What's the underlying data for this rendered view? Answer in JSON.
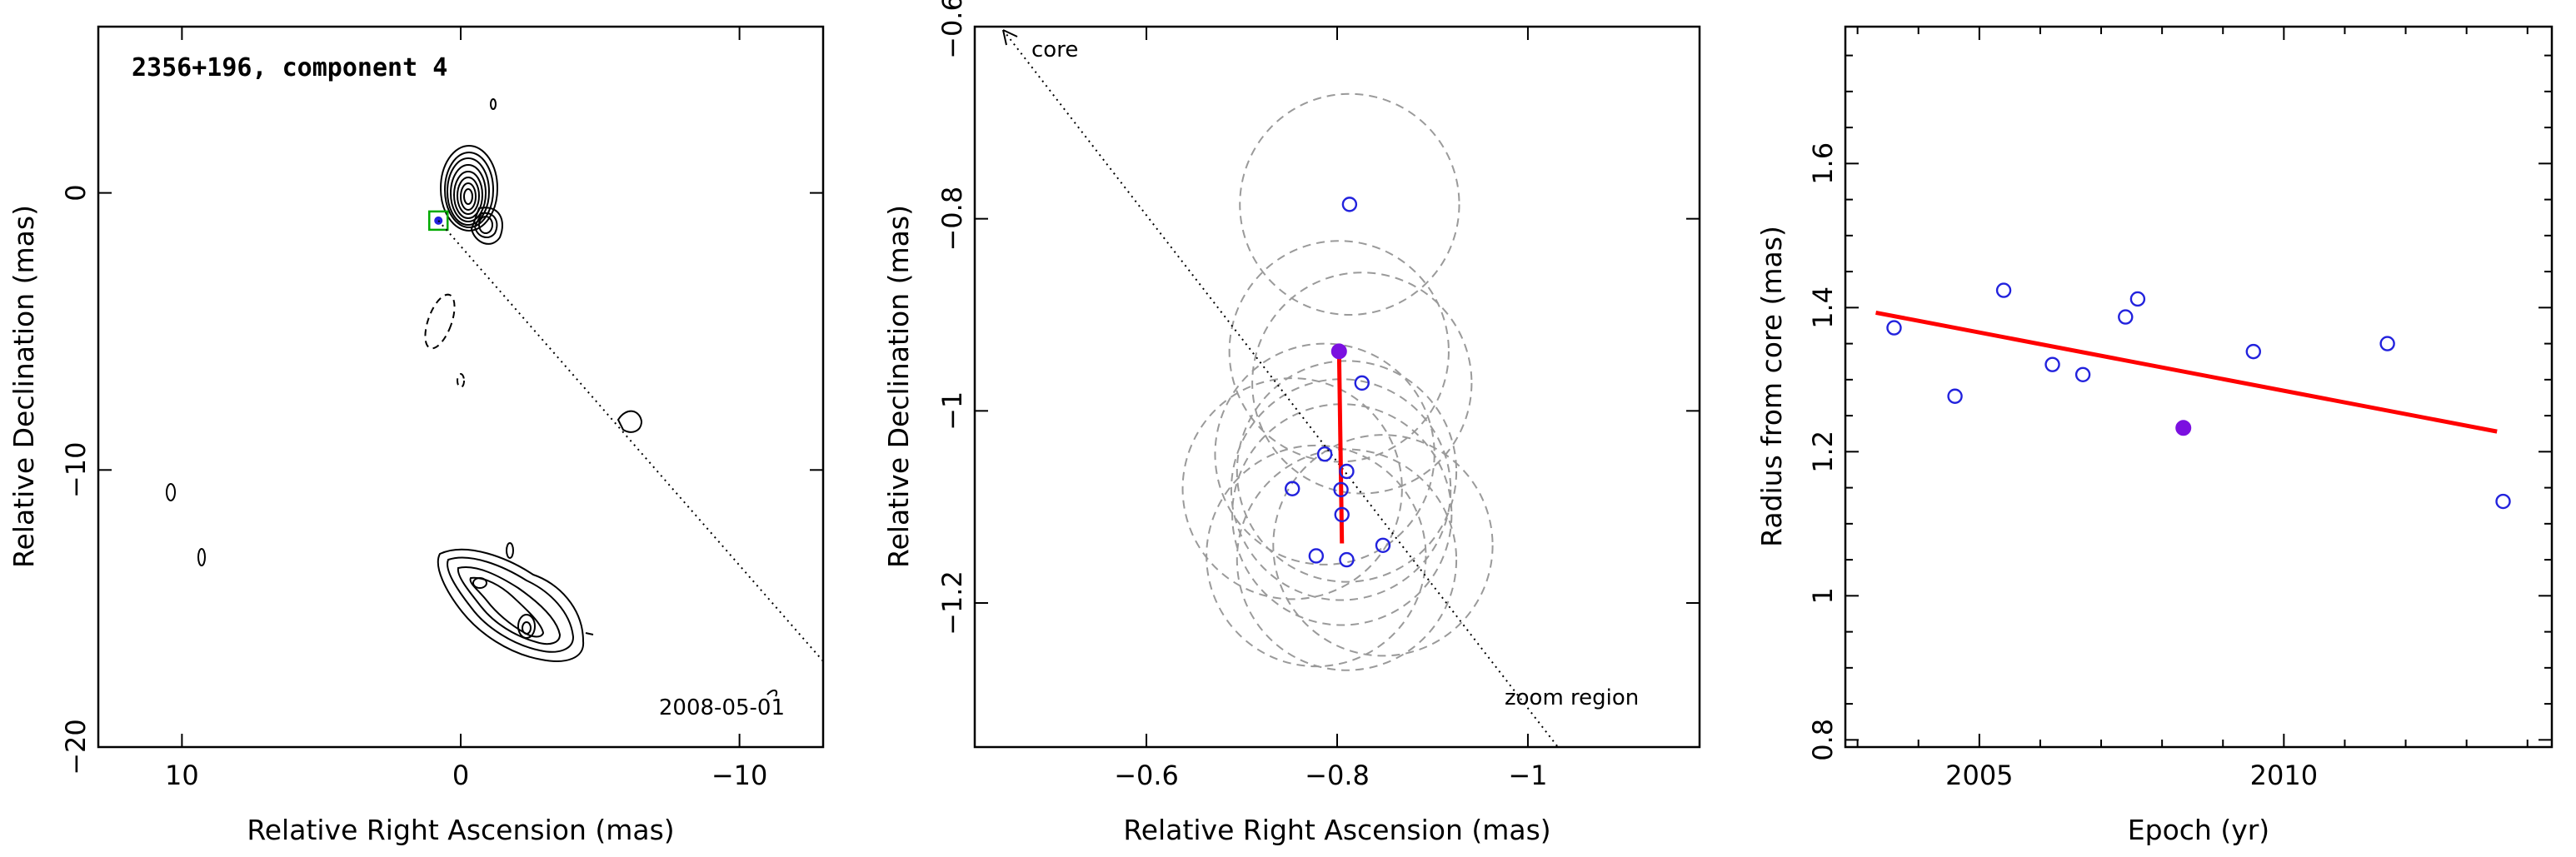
{
  "chart_data": [
    {
      "type": "contour",
      "title": "2356+196, component 4",
      "annotation": "2008-05-01",
      "xlabel": "Relative Right Ascension (mas)",
      "ylabel": "Relative Declination (mas)",
      "xlim": [
        13,
        -13
      ],
      "ylim": [
        -20,
        6
      ],
      "xticks": [
        10,
        0,
        -10
      ],
      "xtick_labels": [
        "10",
        "0",
        "−10"
      ],
      "yticks": [
        0,
        -10,
        -20
      ],
      "ytick_labels": [
        "0",
        "−10",
        "−20"
      ],
      "component_marker": {
        "x": 0.8,
        "y": -1.0,
        "color": "#00aa00"
      },
      "direction_line": {
        "from": [
          0.8,
          -1.0
        ],
        "to": [
          -13,
          -16.9
        ]
      }
    },
    {
      "type": "scatter",
      "xlabel": "Relative Right Ascension (mas)",
      "ylabel": "Relative Declination (mas)",
      "xlim": [
        -0.42,
        -1.18
      ],
      "ylim": [
        -1.35,
        -0.6
      ],
      "xticks": [
        -0.6,
        -0.8,
        -1.0
      ],
      "xtick_labels": [
        "−0.6",
        "−0.8",
        "−1"
      ],
      "yticks": [
        -0.6,
        -0.8,
        -1.0,
        -1.2
      ],
      "ytick_labels": [
        "−0.6",
        "−0.8",
        "−1",
        "−1.2"
      ],
      "annotations": [
        "core",
        "zoom region"
      ],
      "points": [
        {
          "x": -0.813,
          "y": -0.785
        },
        {
          "x": -0.826,
          "y": -0.971
        },
        {
          "x": -0.787,
          "y": -1.045
        },
        {
          "x": -0.81,
          "y": -1.063
        },
        {
          "x": -0.753,
          "y": -1.081
        },
        {
          "x": -0.804,
          "y": -1.082
        },
        {
          "x": -0.805,
          "y": -1.108
        },
        {
          "x": -0.848,
          "y": -1.14
        },
        {
          "x": -0.778,
          "y": -1.151
        },
        {
          "x": -0.81,
          "y": -1.155
        }
      ],
      "highlight": {
        "x": -0.802,
        "y": -0.938
      },
      "circle_radius": 0.115,
      "fit_segment": {
        "x": [
          -0.802,
          -0.805
        ],
        "y": [
          -0.938,
          -1.138
        ]
      }
    },
    {
      "type": "scatter",
      "xlabel": "Epoch (yr)",
      "ylabel": "Radius from core (mas)",
      "xlim": [
        2002.8,
        2014.4
      ],
      "ylim": [
        0.79,
        1.79
      ],
      "xticks": [
        2005,
        2010
      ],
      "xtick_labels": [
        "2005",
        "2010"
      ],
      "yticks": [
        0.8,
        1.0,
        1.2,
        1.4,
        1.6
      ],
      "ytick_labels": [
        "0.8",
        "1",
        "1.2",
        "1.4",
        "1.6"
      ],
      "points": [
        {
          "x": 2003.6,
          "y": 1.372
        },
        {
          "x": 2004.6,
          "y": 1.277
        },
        {
          "x": 2005.4,
          "y": 1.424
        },
        {
          "x": 2006.2,
          "y": 1.321
        },
        {
          "x": 2006.7,
          "y": 1.307
        },
        {
          "x": 2007.4,
          "y": 1.387
        },
        {
          "x": 2007.6,
          "y": 1.412
        },
        {
          "x": 2009.5,
          "y": 1.339
        },
        {
          "x": 2011.7,
          "y": 1.35
        },
        {
          "x": 2013.6,
          "y": 1.131
        }
      ],
      "highlight": {
        "x": 2008.35,
        "y": 1.233
      },
      "fit_line": {
        "x": [
          2003.3,
          2013.5
        ],
        "y": [
          1.393,
          1.228
        ]
      }
    }
  ]
}
